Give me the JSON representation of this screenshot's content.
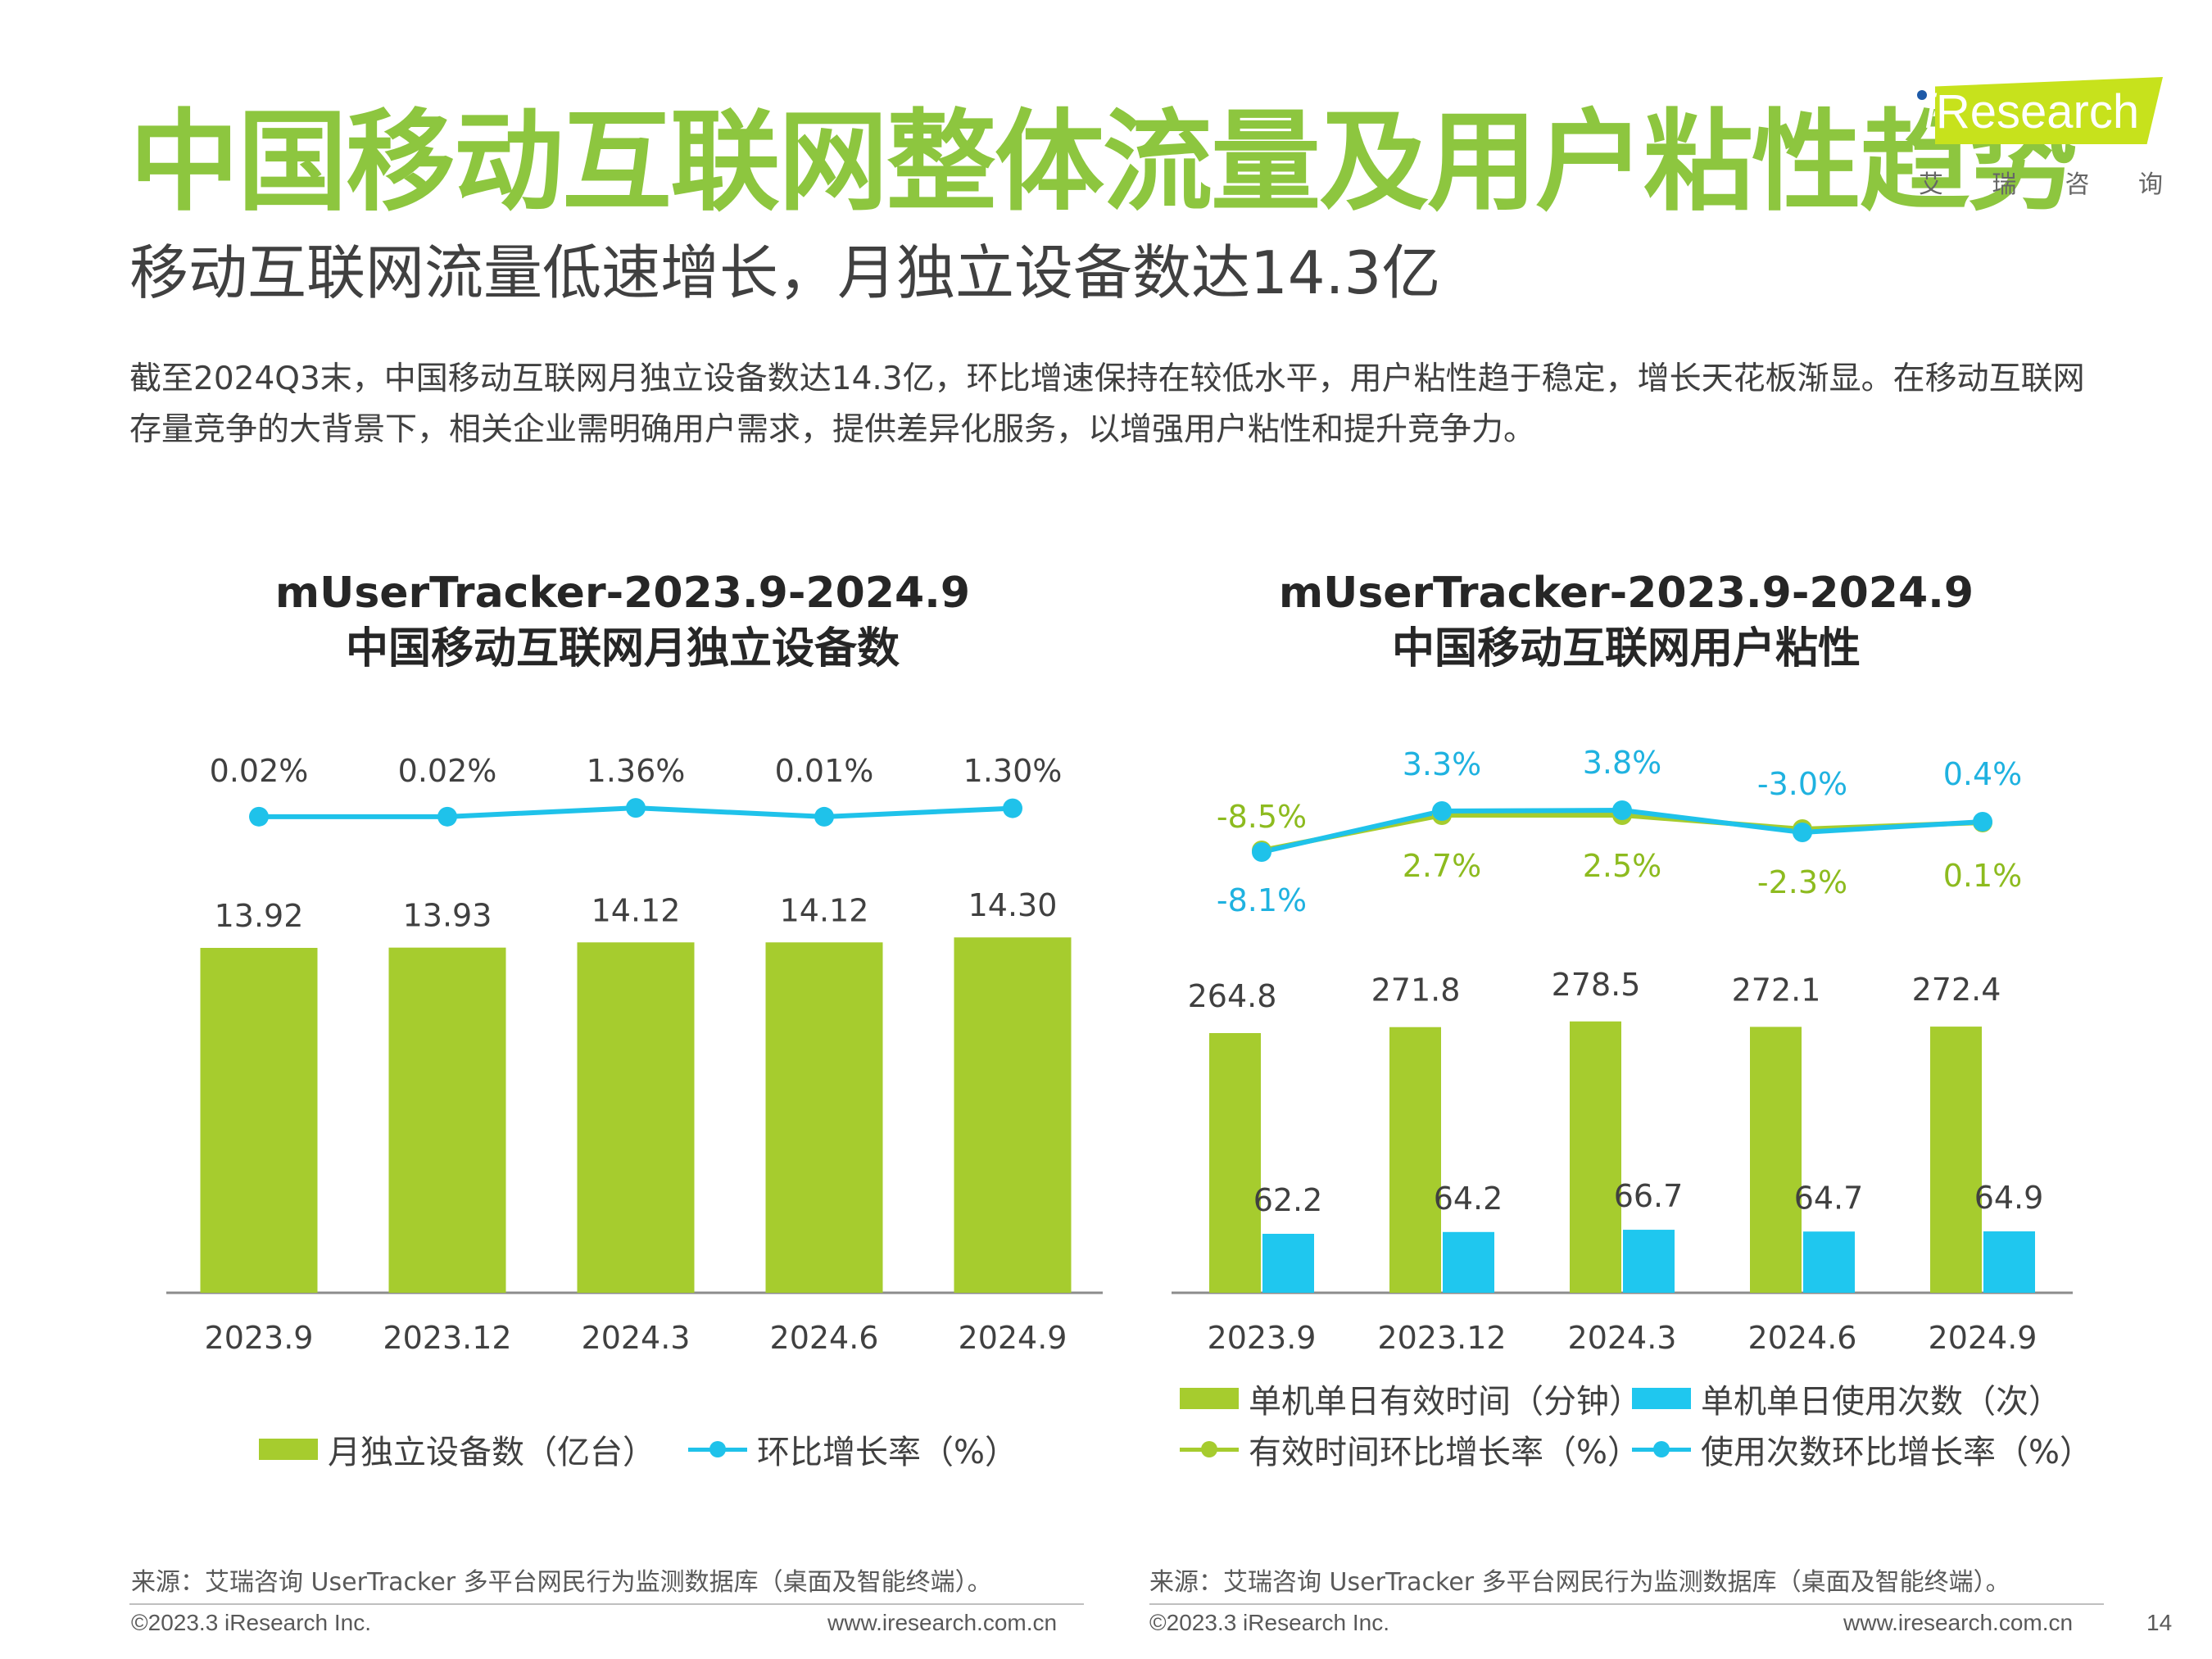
{
  "header": {
    "title": "中国移动互联网整体流量及用户粘性趋势",
    "subtitle": "移动互联网流量低速增长，月独立设备数达14.3亿",
    "description": "截至2024Q3末，中国移动互联网月独立设备数达14.3亿，环比增速保持在较低水平，用户粘性趋于稳定，增长天花板渐显。在移动互联网存量竞争的大背景下，相关企业需明确用户需求，提供差异化服务，以增强用户粘性和提升竞争力。"
  },
  "logo": {
    "text": "Research",
    "cn": [
      "艾",
      "瑞",
      "咨",
      "询"
    ],
    "colors": {
      "banner": "#c7e21c",
      "dot": "#1e5aa8"
    }
  },
  "colors": {
    "title_green": "#8dc63f",
    "bar_green": "#a6cc2e",
    "bar_blue": "#1fc7ef",
    "line_blue": "#1fc2ea",
    "line_green": "#a6cc2e"
  },
  "chart_data": [
    {
      "type": "bar",
      "title_line1": "mUserTracker-2023.9-2024.9",
      "title_line2": "中国移动互联网月独立设备数",
      "categories": [
        "2023.9",
        "2023.12",
        "2024.3",
        "2024.6",
        "2024.9"
      ],
      "series": [
        {
          "name": "月独立设备数（亿台）",
          "type": "bar",
          "values": [
            13.92,
            13.93,
            14.12,
            14.12,
            14.3
          ],
          "labels": [
            "13.92",
            "13.93",
            "14.12",
            "14.12",
            "14.30"
          ]
        },
        {
          "name": "环比增长率（%）",
          "type": "line",
          "values": [
            0.02,
            0.02,
            1.36,
            0.01,
            1.3
          ],
          "labels": [
            "0.02%",
            "0.02%",
            "1.36%",
            "0.01%",
            "1.30%"
          ]
        }
      ],
      "legend": "bottom",
      "grid": false
    },
    {
      "type": "bar",
      "title_line1": "mUserTracker-2023.9-2024.9",
      "title_line2": "中国移动互联网用户粘性",
      "categories": [
        "2023.9",
        "2023.12",
        "2024.3",
        "2024.6",
        "2024.9"
      ],
      "series": [
        {
          "name": "单机单日有效时间（分钟）",
          "type": "bar",
          "values": [
            264.8,
            271.8,
            278.5,
            272.1,
            272.4
          ],
          "labels": [
            "264.8",
            "271.8",
            "278.5",
            "272.1",
            "272.4"
          ]
        },
        {
          "name": "单机单日使用次数（次）",
          "type": "bar",
          "values": [
            62.2,
            64.2,
            66.7,
            64.7,
            64.9
          ],
          "labels": [
            "62.2",
            "64.2",
            "66.7",
            "64.7",
            "64.9"
          ]
        },
        {
          "name": "有效时间环比增长率（%）",
          "type": "line",
          "values": [
            -8.5,
            2.7,
            2.5,
            -2.3,
            0.1
          ],
          "labels": [
            "-8.5%",
            "2.7%",
            "2.5%",
            "-2.3%",
            "0.1%"
          ]
        },
        {
          "name": "使用次数环比增长率（%）",
          "type": "line",
          "values": [
            -8.1,
            3.3,
            3.8,
            -3.0,
            0.4
          ],
          "labels": [
            "-8.1%",
            "3.3%",
            "3.8%",
            "-3.0%",
            "0.4%"
          ]
        }
      ],
      "legend": "bottom",
      "grid": false
    }
  ],
  "footer": {
    "source": "来源：艾瑞咨询 UserTracker 多平台网民行为监测数据库（桌面及智能终端）。",
    "copyright": "©2023.3 iResearch Inc.",
    "website": "www.iresearch.com.cn",
    "page_number": "14"
  }
}
